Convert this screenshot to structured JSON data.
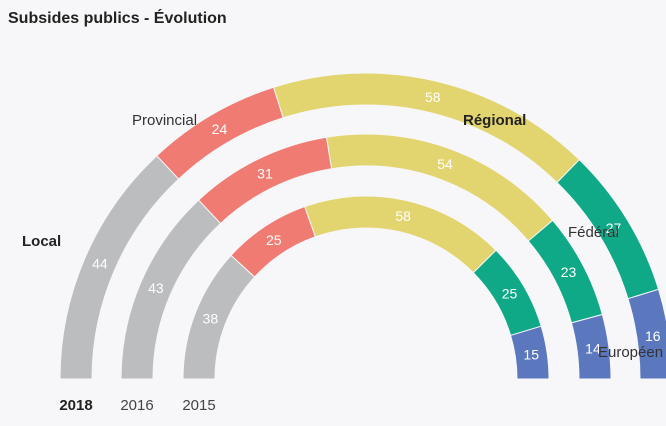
{
  "title": "Subsides publics - Évolution",
  "chart_data": {
    "type": "bar",
    "layout": "radial stacked semicircle",
    "title": "Subsides publics - Évolution",
    "categories": [
      "Local",
      "Provincial",
      "Régional",
      "Fédéral",
      "Européen"
    ],
    "highlighted_category": "Régional",
    "colors": {
      "Local": "#bcbdbe",
      "Provincial": "#f07b72",
      "Régional": "#e2d46f",
      "Fédéral": "#10a987",
      "Européen": "#5b78be"
    },
    "series": [
      {
        "name": "2018",
        "values": [
          44,
          24,
          58,
          27,
          16
        ],
        "highlighted": true
      },
      {
        "name": "2016",
        "values": [
          43,
          31,
          54,
          23,
          14
        ],
        "highlighted": false
      },
      {
        "name": "2015",
        "values": [
          38,
          25,
          58,
          25,
          15
        ],
        "highlighted": false
      }
    ]
  }
}
